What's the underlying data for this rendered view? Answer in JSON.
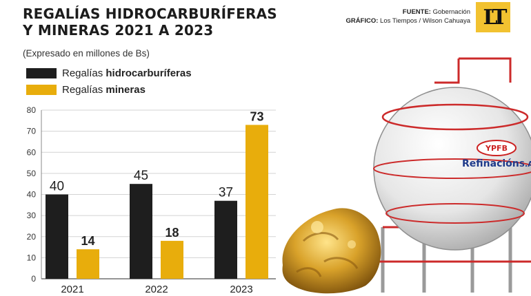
{
  "header": {
    "title_line1": "REGALÍAS HIDROCARBURÍFERAS",
    "title_line2": "Y MINERAS 2021 A 2023",
    "source_label": "FUENTE:",
    "source_value": "Gobernación",
    "graphic_label": "GRÁFICO:",
    "graphic_value": "Los Tiempos / Wilson Cahuaya",
    "logo_text": "LT"
  },
  "photo": {
    "tank_text_1": "YPFB",
    "tank_text_2": "Refinación",
    "tank_text_3": "S.A"
  },
  "colors": {
    "hydro": "#1e1e1e",
    "mining": "#e8ad0c",
    "logo": "#f2c230"
  },
  "chart_data": {
    "type": "bar",
    "subtitle": "(Expresado en millones de Bs)",
    "categories": [
      "2021",
      "2022",
      "2023"
    ],
    "series": [
      {
        "name_regular": "Regalías ",
        "name_bold": "hidrocarburíferas",
        "values": [
          40,
          45,
          37
        ]
      },
      {
        "name_regular": "Regalías ",
        "name_bold": "mineras",
        "values": [
          14,
          18,
          73
        ]
      }
    ],
    "ylim": [
      0,
      80
    ],
    "yticks": [
      0,
      10,
      20,
      30,
      40,
      50,
      60,
      70,
      80
    ],
    "grid": true,
    "legend": "top-left"
  }
}
